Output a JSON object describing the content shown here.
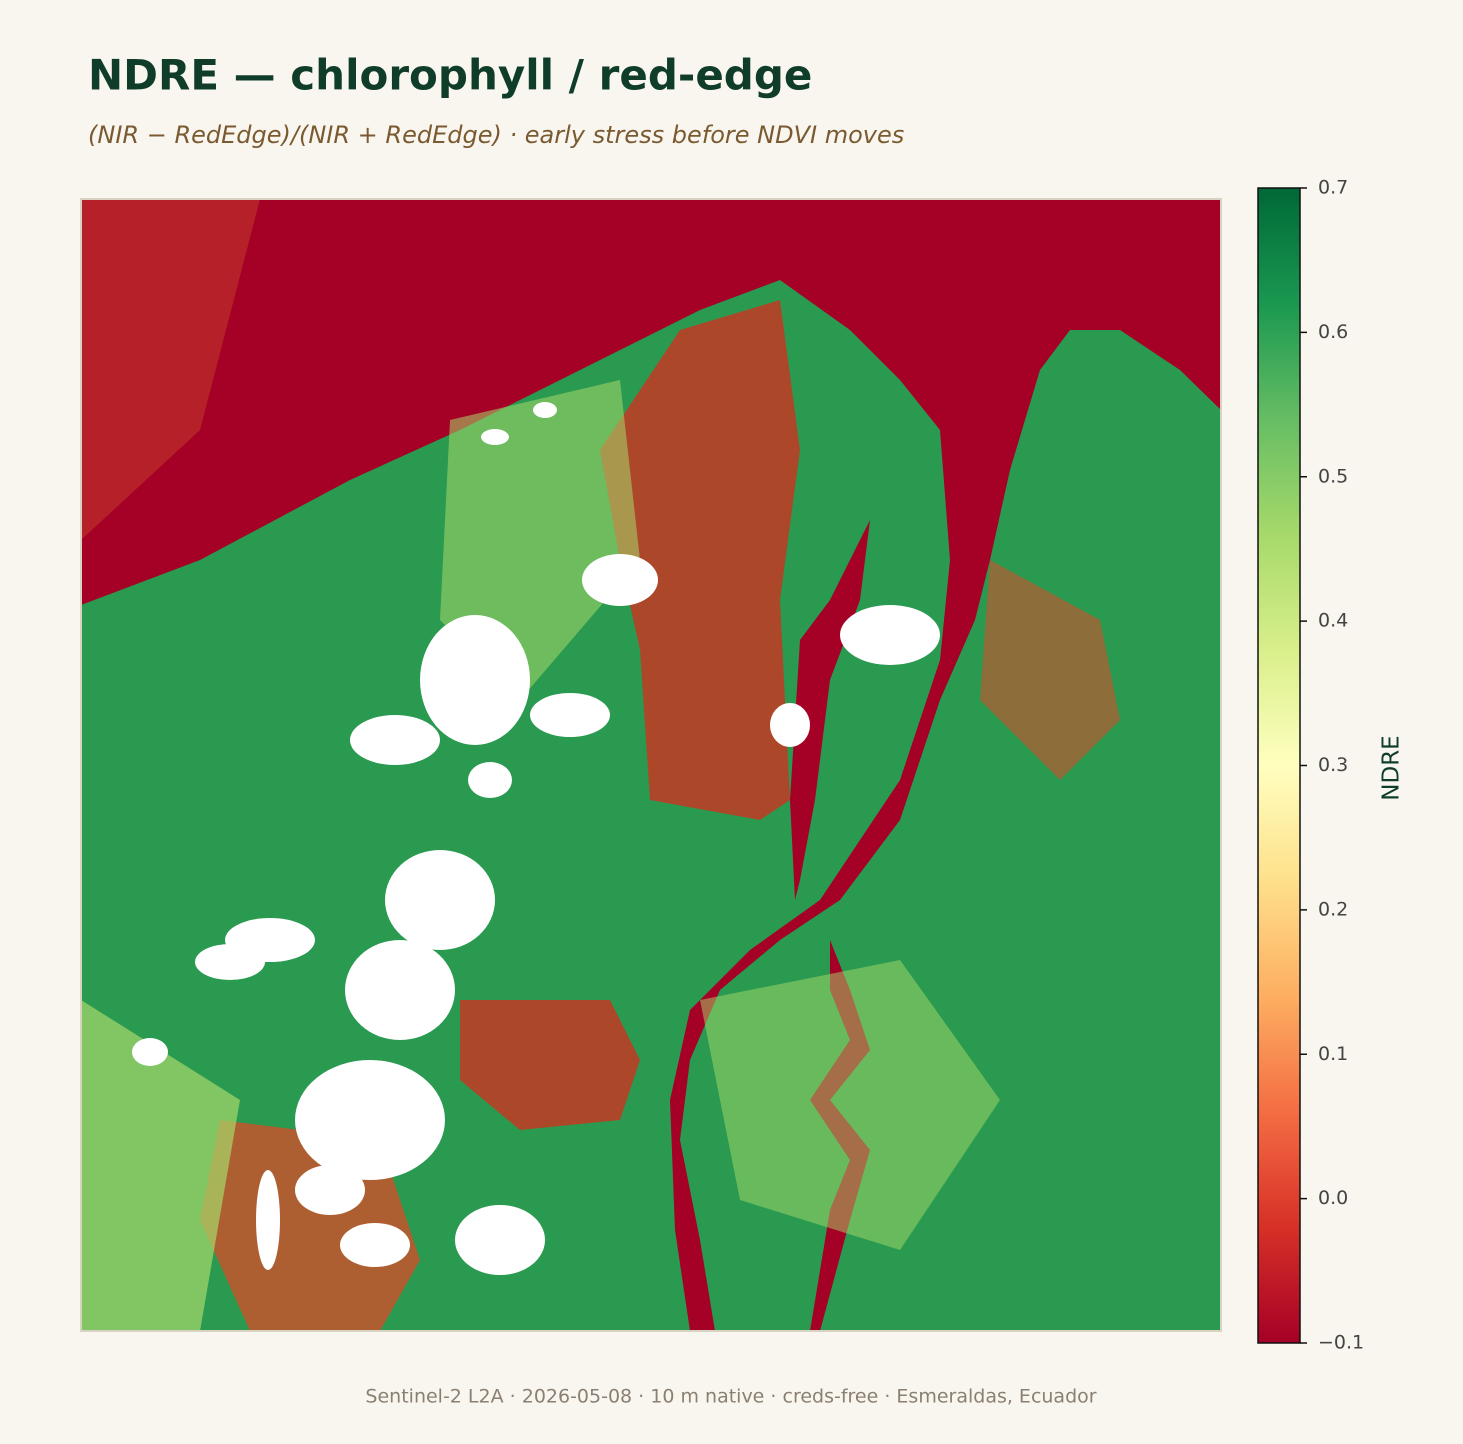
{
  "header": {
    "title": "NDRE — chlorophyll / red-edge",
    "subtitle": "(NIR − RedEdge)/(NIR + RedEdge) · early stress before NDVI moves"
  },
  "colorbar": {
    "label": "NDRE",
    "lim": [
      -0.1,
      0.7
    ],
    "ticks": [
      {
        "value": -0.1,
        "label": "−0.1"
      },
      {
        "value": 0,
        "label": "0.0"
      },
      0.1,
      0.2,
      0.3,
      0.4,
      0.5,
      0.6,
      0.7
    ],
    "colormap": [
      "#a50026",
      "#d73027",
      "#f46d43",
      "#fdae61",
      "#fee08b",
      "#ffffbf",
      "#d9ef8b",
      "#a6d96a",
      "#66bd63",
      "#1a9850",
      "#006837"
    ]
  },
  "footer": "Sentinel-2 L2A · 2026-05-08 · 10 m native · creds-free · Esmeraldas, Ecuador"
}
